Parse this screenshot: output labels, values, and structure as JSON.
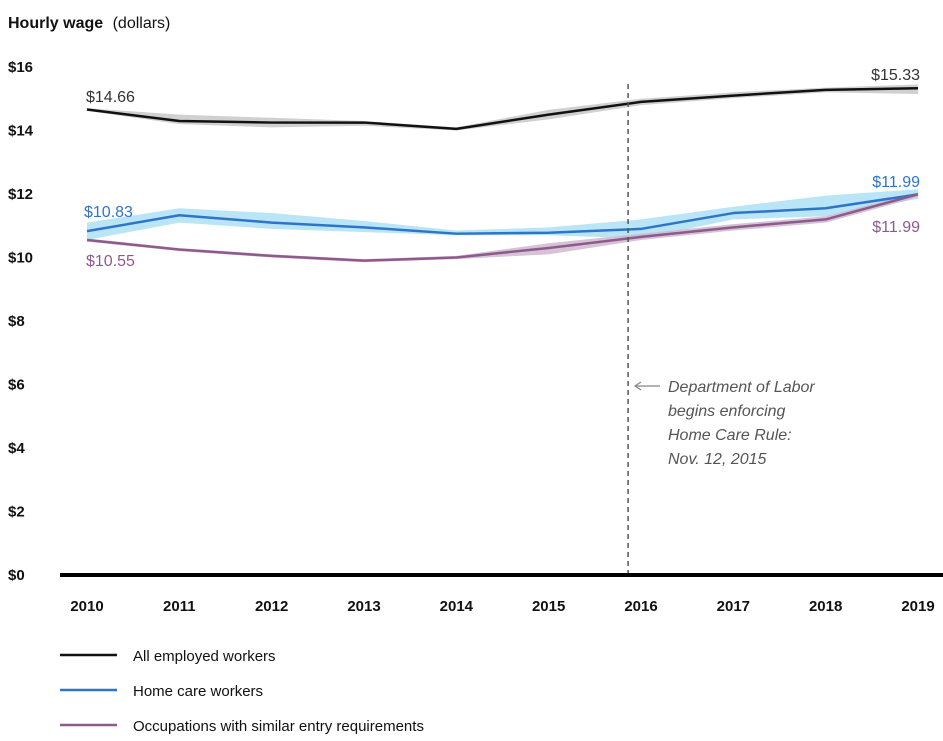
{
  "chart_data": {
    "type": "line",
    "title": "",
    "ylabel_bold": "Hourly wage",
    "ylabel_rest": "(dollars)",
    "xlabel": "",
    "x": [
      "2010",
      "2011",
      "2012",
      "2013",
      "2014",
      "2015",
      "2016",
      "2017",
      "2018",
      "2019"
    ],
    "y_ticks": [
      "$0",
      "$2",
      "$4",
      "$6",
      "$8",
      "$10",
      "$12",
      "$14",
      "$16"
    ],
    "y_tick_values": [
      0,
      2,
      4,
      6,
      8,
      10,
      12,
      14,
      16
    ],
    "ylim": [
      0,
      16
    ],
    "grid": false,
    "legend_position": "bottom-left",
    "series": [
      {
        "name": "All employed workers",
        "color": "#111111",
        "band_color": "#c8c8c8",
        "values": [
          14.66,
          14.3,
          14.25,
          14.25,
          14.05,
          14.5,
          14.9,
          15.1,
          15.28,
          15.33
        ],
        "band_low": [
          14.62,
          14.2,
          14.1,
          14.15,
          14.0,
          14.35,
          14.8,
          15.02,
          15.2,
          15.15
        ],
        "band_high": [
          14.7,
          14.5,
          14.4,
          14.3,
          14.1,
          14.65,
          15.0,
          15.2,
          15.35,
          15.45
        ],
        "start_label": "$14.66",
        "end_label": "$15.33"
      },
      {
        "name": "Home care workers",
        "color": "#2e75c9",
        "band_color": "#aee1f6",
        "values": [
          10.83,
          11.33,
          11.1,
          10.95,
          10.75,
          10.78,
          10.9,
          11.4,
          11.55,
          11.99
        ],
        "band_low": [
          10.55,
          11.1,
          10.9,
          10.8,
          10.7,
          10.7,
          10.6,
          11.2,
          11.3,
          11.85
        ],
        "band_high": [
          11.1,
          11.55,
          11.4,
          11.15,
          10.85,
          10.95,
          11.2,
          11.6,
          11.95,
          12.15
        ],
        "start_label": "$10.83",
        "end_label": "$11.99"
      },
      {
        "name": "Occupations with similar entry requirements",
        "color": "#8e5a8c",
        "band_color": "#cfb8cf",
        "values": [
          10.55,
          10.25,
          10.05,
          9.9,
          10.0,
          10.3,
          10.65,
          10.95,
          11.2,
          11.99
        ],
        "band_low": [
          10.5,
          10.2,
          10.0,
          9.85,
          9.95,
          10.1,
          10.55,
          10.85,
          11.1,
          11.9
        ],
        "band_high": [
          10.6,
          10.3,
          10.1,
          9.95,
          10.05,
          10.45,
          10.75,
          11.05,
          11.3,
          12.05
        ],
        "start_label": "$10.55",
        "end_label": "$11.99"
      }
    ],
    "reference_line": {
      "position_year": 2015.86,
      "style": "dashed",
      "annotation_lines": [
        "Department of Labor",
        "begins enforcing",
        "Home Care Rule:",
        "Nov. 12, 2015"
      ]
    }
  }
}
